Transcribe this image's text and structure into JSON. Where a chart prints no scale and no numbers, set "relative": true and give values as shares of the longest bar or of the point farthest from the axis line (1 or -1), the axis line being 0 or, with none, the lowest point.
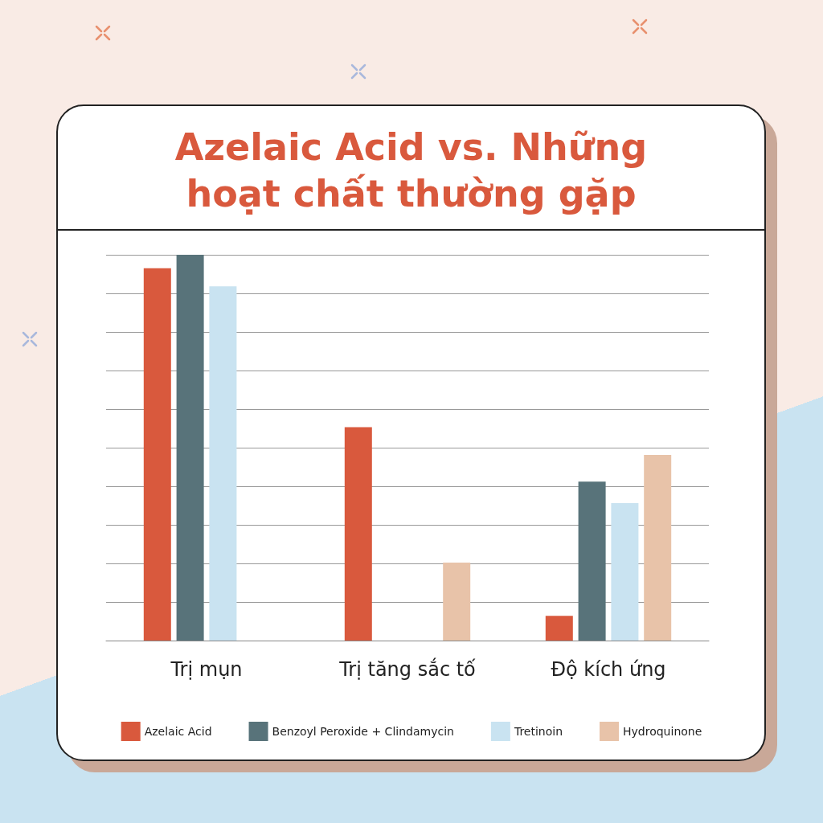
{
  "chart_data": {
    "type": "bar",
    "title": "Azelaic Acid vs. Những hoạt chất thường gặp",
    "relative": true,
    "grid": "y",
    "legend": "bottom",
    "categories": [
      "Trị mụn",
      "Trị tăng sắc tố",
      "Độ kích ứng"
    ],
    "series": [
      {
        "name": "Azelaic Acid",
        "color": "#d9593d",
        "values": [
          0.965,
          0.553,
          0.064
        ]
      },
      {
        "name": "Benzoyl Peroxide + Clindamycin",
        "color": "#58737a",
        "values": [
          1,
          null,
          0.412
        ]
      },
      {
        "name": "Tretinoin",
        "color": "#c9e3f1",
        "values": [
          0.918,
          null,
          0.356
        ]
      },
      {
        "name": "Hydroquinone",
        "color": "#e8c3a9",
        "values": [
          null,
          0.202,
          0.481
        ]
      }
    ]
  }
}
